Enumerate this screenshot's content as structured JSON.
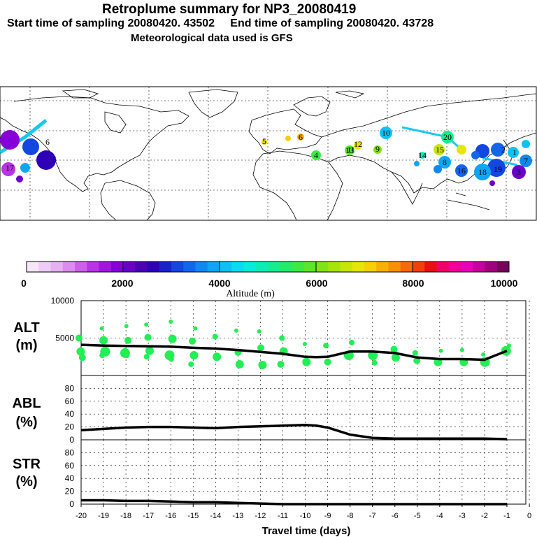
{
  "header": {
    "title": "Retroplume summary for NP3_20080419",
    "start_label": "Start time of sampling 20080420. 43502",
    "end_label": "End time of sampling 20080420. 43728",
    "met_label": "Meteorological data used is GFS"
  },
  "colors": {
    "scatter": "#22ee55",
    "line": "#000000",
    "colorbar": [
      "#f6e6f8",
      "#efccf5",
      "#e6b0f2",
      "#dc8cef",
      "#cd5fe9",
      "#bb33e6",
      "#a215e0",
      "#8600d8",
      "#6a00c8",
      "#4c00b4",
      "#2e00b6",
      "#1a22cc",
      "#1446e0",
      "#1266ee",
      "#1088f2",
      "#0ea6f4",
      "#0cc2f4",
      "#0adcf0",
      "#08ecda",
      "#0aeeb6",
      "#14ee90",
      "#22ec6a",
      "#3cea44",
      "#5ce628",
      "#80e416",
      "#a6e40a",
      "#c8e606",
      "#e6e604",
      "#f6d004",
      "#f8b004",
      "#f89004",
      "#f86a06",
      "#f2400a",
      "#ea1010",
      "#f00068",
      "#f00098",
      "#e800b8",
      "#c8009c",
      "#a00080",
      "#78005c"
    ]
  },
  "colorbar": {
    "ticks": [
      "0",
      "2000",
      "4000",
      "6000",
      "8000",
      "10000"
    ],
    "label": "Altitude (m)"
  },
  "map": {
    "labels": [
      "6",
      "5",
      "10",
      "20",
      "15",
      "14",
      "12",
      "13",
      "9",
      "11",
      "4",
      "17",
      "18",
      "19",
      "1",
      "2",
      "3",
      "7",
      "8",
      "16"
    ]
  },
  "chart_data": [
    {
      "type": "line",
      "panel": "ALT",
      "ylabel": "ALT",
      "yunit": "(m)",
      "ylim": [
        0,
        10000
      ],
      "yticks": [
        "5000",
        "10000"
      ],
      "x": [
        -20,
        -19,
        -18,
        -17,
        -16,
        -15,
        -14,
        -13,
        -12,
        -11,
        -10,
        -9.5,
        -9,
        -8,
        -7,
        -6,
        -5,
        -4,
        -3,
        -2,
        -1
      ],
      "values": [
        4100,
        4000,
        3950,
        3900,
        3850,
        3700,
        3600,
        3400,
        3150,
        2900,
        2500,
        2450,
        2500,
        3200,
        3200,
        3000,
        2400,
        2200,
        2200,
        2100,
        3300
      ],
      "scatter": {
        "x": [
          -20,
          -20,
          -20,
          -19,
          -19,
          -19,
          -19,
          -18,
          -18,
          -18,
          -18,
          -17,
          -17,
          -17,
          -17,
          -16,
          -16,
          -16,
          -16,
          -15,
          -15,
          -15,
          -15,
          -14,
          -14,
          -13,
          -13,
          -13,
          -12,
          -12,
          -12,
          -11,
          -11,
          -11,
          -10,
          -10,
          -9,
          -9,
          -8,
          -8,
          -7,
          -7,
          -6,
          -6,
          -5,
          -5,
          -4,
          -4,
          -3,
          -3,
          -2,
          -2,
          -1,
          -1
        ],
        "y": [
          5000,
          3200,
          2400,
          6300,
          4700,
          3200,
          2700,
          6600,
          4700,
          3000,
          2700,
          6800,
          5100,
          3300,
          2500,
          7200,
          4900,
          2700,
          2200,
          6300,
          4600,
          2700,
          1500,
          5200,
          2500,
          6000,
          3100,
          1500,
          5900,
          3700,
          1400,
          5000,
          3200,
          1500,
          4200,
          1800,
          4000,
          1800,
          4400,
          2700,
          2700,
          1700,
          3500,
          2400,
          3000,
          2000,
          3300,
          1800,
          3400,
          1800,
          2800,
          1800,
          4000,
          3300
        ],
        "size": [
          5,
          6,
          5,
          3,
          6,
          7,
          4,
          3,
          5,
          7,
          4,
          3,
          5,
          6,
          4,
          3,
          6,
          7,
          4,
          3,
          5,
          6,
          4,
          4,
          6,
          3,
          5,
          6,
          3,
          5,
          6,
          4,
          6,
          5,
          3,
          6,
          4,
          5,
          4,
          7,
          7,
          4,
          5,
          6,
          4,
          5,
          3,
          6,
          3,
          6,
          3,
          7,
          3,
          7
        ]
      }
    },
    {
      "type": "line",
      "panel": "ABL",
      "ylabel": "ABL",
      "yunit": "(%)",
      "ylim": [
        0,
        100
      ],
      "yticks": [
        "0",
        "20",
        "40",
        "60",
        "80"
      ],
      "x": [
        -20,
        -19,
        -18,
        -17,
        -16,
        -15,
        -14,
        -13,
        -12,
        -11,
        -10,
        -9.5,
        -9,
        -8,
        -7,
        -6,
        -5,
        -4,
        -3,
        -2,
        -1
      ],
      "values": [
        15,
        17,
        19,
        20,
        20,
        19,
        18,
        20,
        21,
        22,
        23,
        22,
        19,
        8,
        3,
        2,
        2,
        2,
        2,
        2,
        1
      ]
    },
    {
      "type": "line",
      "panel": "STR",
      "ylabel": "STR",
      "yunit": "(%)",
      "ylim": [
        0,
        100
      ],
      "yticks": [
        "0",
        "20",
        "40",
        "60",
        "80"
      ],
      "x": [
        -20,
        -19,
        -18,
        -17,
        -16,
        -15,
        -14,
        -13,
        -12,
        -11,
        -10,
        -9,
        -8,
        -7,
        -6,
        -5,
        -4,
        -3,
        -2,
        -1
      ],
      "values": [
        6,
        6,
        5,
        5,
        4,
        3,
        3,
        2,
        1,
        0,
        0,
        0,
        0,
        0,
        0,
        0,
        0,
        0,
        0,
        0
      ],
      "xlabel": "Travel time (days)",
      "xticks": [
        "-20",
        "-19",
        "-18",
        "-17",
        "-16",
        "-15",
        "-14",
        "-13",
        "-12",
        "-11",
        "-10",
        "-9",
        "-8",
        "-7",
        "-6",
        "-5",
        "-4",
        "-3",
        "-2",
        "-1",
        "0"
      ]
    }
  ]
}
